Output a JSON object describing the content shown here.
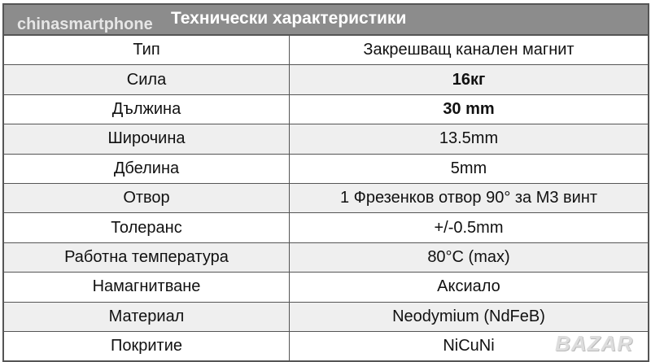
{
  "header": {
    "title": "Технически характеристики",
    "watermark": "chinasmartphone"
  },
  "rows": [
    {
      "label": "Тип",
      "value": "Закрешващ канален магнит",
      "bold": false
    },
    {
      "label": "Сила",
      "value": "16кг",
      "bold": true
    },
    {
      "label": "Дължина",
      "value": "30 mm",
      "bold": true
    },
    {
      "label": "Широчина",
      "value": "13.5mm",
      "bold": false
    },
    {
      "label": "Дбелина",
      "value": "5mm",
      "bold": false
    },
    {
      "label": "Отвор",
      "value": "1 Фрезенков отвор 90° за М3 винт",
      "bold": false
    },
    {
      "label": "Толеранс",
      "value": "+/-0.5mm",
      "bold": false
    },
    {
      "label": "Работна температура",
      "value": "80°C (max)",
      "bold": false
    },
    {
      "label": "Намагнитване",
      "value": "Аксиало",
      "bold": false
    },
    {
      "label": "Материал",
      "value": "Neodymium (NdFeB)",
      "bold": false
    },
    {
      "label": "Покритие",
      "value": "NiCuNi",
      "bold": false
    }
  ],
  "logo": "BAZAR"
}
